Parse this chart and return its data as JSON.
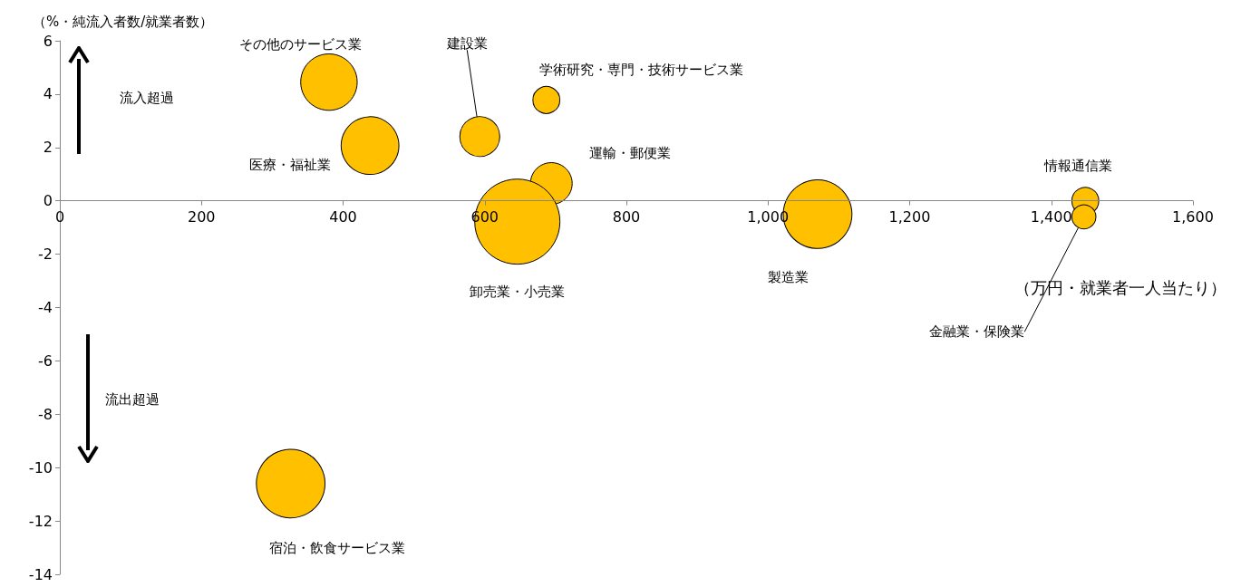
{
  "chart_data": {
    "type": "bubble",
    "xlabel": "（万円・就業者一人当たり）",
    "ylabel": "（%・純流入者数/就業者数）",
    "annotations": [
      "流入超過",
      "流出超過"
    ],
    "series": [
      {
        "name": "その他のサービス業",
        "color": "#ffc000",
        "x": [
          380
        ],
        "values": [
          4.45
        ],
        "sizes": [
          0.44
        ]
      },
      {
        "name": "医療・福祉業",
        "color": "#ffc000",
        "x": [
          438
        ],
        "values": [
          2.07
        ],
        "sizes": [
          0.46
        ]
      },
      {
        "name": "建設業",
        "color": "#ffc000",
        "x": [
          593
        ],
        "values": [
          2.41
        ],
        "sizes": [
          0.22
        ]
      },
      {
        "name": "学術研究・専門・技術サービス業",
        "color": "#ffc000",
        "x": [
          687
        ],
        "values": [
          3.78
        ],
        "sizes": [
          0.1
        ]
      },
      {
        "name": "運輸・郵便業",
        "color": "#ffc000",
        "x": [
          694
        ],
        "values": [
          0.65
        ],
        "sizes": [
          0.24
        ]
      },
      {
        "name": "卸売業・小売業",
        "color": "#ffc000",
        "x": [
          646
        ],
        "values": [
          -0.78
        ],
        "sizes": [
          1
        ]
      },
      {
        "name": "製造業",
        "color": "#ffc000",
        "x": [
          1070
        ],
        "values": [
          -0.5
        ],
        "sizes": [
          0.65
        ]
      },
      {
        "name": "情報通信業",
        "color": "#ffc000",
        "x": [
          1448
        ],
        "values": [
          0
        ],
        "sizes": [
          0.1
        ]
      },
      {
        "name": "金融業・保険業",
        "color": "#ffc000",
        "x": [
          1446
        ],
        "values": [
          -0.6
        ],
        "sizes": [
          0.08
        ]
      },
      {
        "name": "宿泊・飲食サービス業",
        "color": "#ffc000",
        "x": [
          326
        ],
        "values": [
          -10.6
        ],
        "sizes": [
          0.65
        ]
      }
    ],
    "xlim": [
      0,
      1600
    ],
    "xticks": [
      0,
      200,
      400,
      600,
      800,
      {
        "value": 1000,
        "label": "1,000"
      },
      {
        "value": 1200,
        "label": "1,200"
      },
      {
        "value": 1400,
        "label": "1,400"
      },
      {
        "value": 1600,
        "label": "1,600"
      }
    ],
    "ylim": [
      -14,
      6
    ],
    "yticks": [
      -14,
      -12,
      -10,
      -8,
      -6,
      -4,
      -2,
      0,
      2,
      4,
      6
    ],
    "grid": false,
    "legend": false
  }
}
